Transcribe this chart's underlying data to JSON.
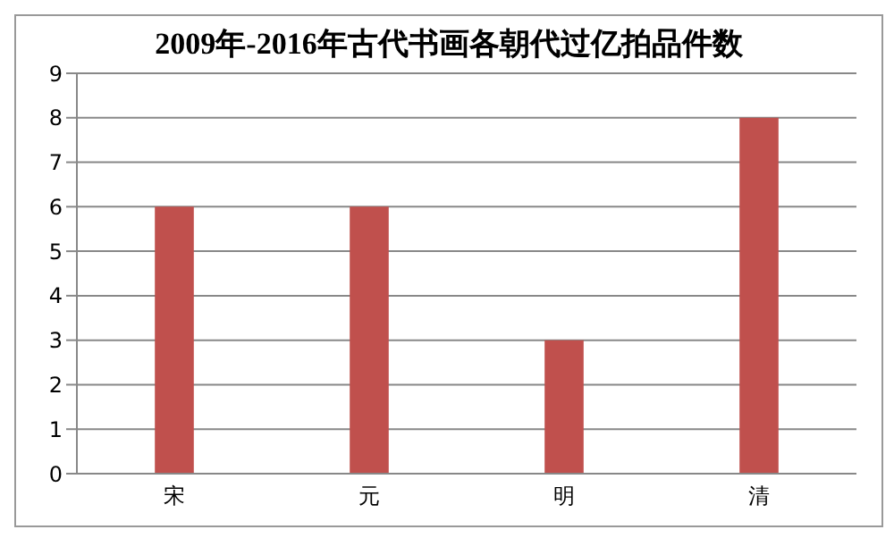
{
  "chart_data": {
    "type": "bar",
    "title": "2009年-2016年古代书画各朝代过亿拍品件数",
    "categories": [
      "宋",
      "元",
      "明",
      "清"
    ],
    "values": [
      6,
      6,
      3,
      8
    ],
    "color": "#c0504d",
    "ylim": [
      0,
      9
    ],
    "yticks": [
      0,
      1,
      2,
      3,
      4,
      5,
      6,
      7,
      8,
      9
    ],
    "grid": "y"
  }
}
